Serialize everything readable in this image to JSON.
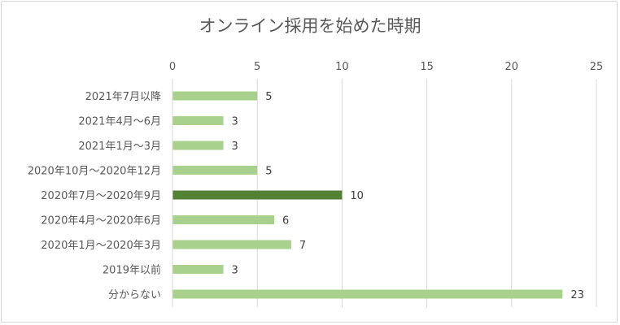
{
  "chart_data": {
    "type": "bar",
    "orientation": "horizontal",
    "title": "オンライン採用を始めた時期",
    "xlabel": "",
    "ylabel": "",
    "xlim": [
      0,
      25
    ],
    "x_ticks": [
      0,
      5,
      10,
      15,
      20,
      25
    ],
    "x_axis_position": "top",
    "grid": true,
    "categories": [
      "2021年7月以降",
      "2021年4月～6月",
      "2021年1月～3月",
      "2020年10月～2020年12月",
      "2020年7月～2020年9月",
      "2020年4月～2020年6月",
      "2020年1月～2020年3月",
      "2019年以前",
      "分からない"
    ],
    "values": [
      5,
      3,
      3,
      5,
      10,
      6,
      7,
      3,
      23
    ],
    "data_labels": [
      "5",
      "3",
      "3",
      "5",
      "10",
      "6",
      "7",
      "3",
      "23"
    ],
    "highlight_index": 4,
    "colors": {
      "bar": "#a9d18e",
      "highlight": "#548235",
      "grid": "#d9d9d9",
      "text": "#595959"
    }
  }
}
